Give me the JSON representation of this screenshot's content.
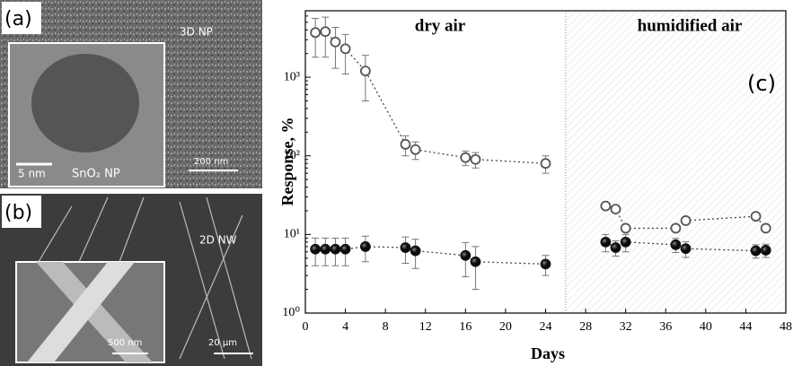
{
  "images": [
    {
      "label": "(a)",
      "corner_text": "3D NP",
      "inset_scale": "5 nm",
      "inset_caption": "SnO₂ NP",
      "scale": "200 nm"
    },
    {
      "label": "(b)",
      "corner_text": "2D NW",
      "inset_scale": "500 nm",
      "scale": "20 µm"
    }
  ],
  "chart_data": {
    "type": "scatter",
    "panel_label": "(c)",
    "annotations": [
      "dry air",
      "humidified air"
    ],
    "shaded_xrange": [
      26,
      48
    ],
    "xlabel": "Days",
    "ylabel": "Response, %",
    "log_y": true,
    "xlim": [
      0,
      48
    ],
    "xticks": [
      0,
      4,
      8,
      12,
      16,
      20,
      24,
      28,
      32,
      36,
      40,
      44,
      48
    ],
    "ylim": [
      1,
      7000
    ],
    "yticks": [
      {
        "value": 1,
        "label": "10⁰"
      },
      {
        "value": 10,
        "label": "10¹"
      },
      {
        "value": 100,
        "label": "10²"
      },
      {
        "value": 1000,
        "label": "10³"
      }
    ],
    "series": [
      {
        "marker": "open",
        "color": "#555555",
        "x": [
          1,
          2,
          3,
          4,
          6,
          10,
          11,
          16,
          17,
          24
        ],
        "values": [
          3700,
          3800,
          2800,
          2300,
          1200,
          140,
          120,
          95,
          90,
          80
        ],
        "errors": [
          1900,
          2000,
          1500,
          1200,
          700,
          40,
          30,
          20,
          20,
          20
        ]
      },
      {
        "marker": "open",
        "color": "#555555",
        "x": [
          30,
          31,
          32,
          37,
          38,
          45,
          46
        ],
        "values": [
          23,
          21,
          12,
          12,
          15,
          17,
          12
        ]
      },
      {
        "marker": "filled",
        "color": "#111111",
        "x": [
          1,
          2,
          3,
          4,
          6,
          10,
          11,
          16,
          17,
          24
        ],
        "values": [
          6.5,
          6.5,
          6.5,
          6.5,
          7,
          6.8,
          6.2,
          5.4,
          4.5,
          4.2
        ],
        "errors": [
          2.5,
          2.5,
          2.5,
          2.5,
          2.5,
          2.5,
          2.5,
          2.5,
          2.5,
          1.2
        ]
      },
      {
        "marker": "filled",
        "color": "#111111",
        "x": [
          30,
          31,
          32,
          37,
          38,
          45,
          46
        ],
        "values": [
          8,
          6.8,
          8,
          7.4,
          6.6,
          6.2,
          6.3
        ],
        "errors": [
          2,
          1.5,
          2,
          1.5,
          1.5,
          1.2,
          1.2
        ]
      }
    ]
  }
}
